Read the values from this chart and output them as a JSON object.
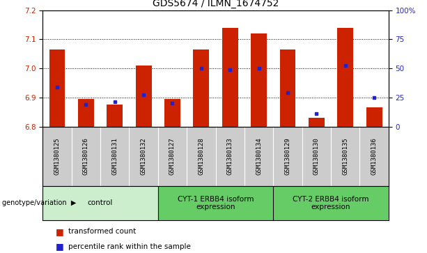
{
  "title": "GDS5674 / ILMN_1674752",
  "samples": [
    "GSM1380125",
    "GSM1380126",
    "GSM1380131",
    "GSM1380132",
    "GSM1380127",
    "GSM1380128",
    "GSM1380133",
    "GSM1380134",
    "GSM1380129",
    "GSM1380130",
    "GSM1380135",
    "GSM1380136"
  ],
  "red_values": [
    7.065,
    6.895,
    6.875,
    7.01,
    6.895,
    7.065,
    7.14,
    7.12,
    7.065,
    6.83,
    7.14,
    6.865
  ],
  "blue_values": [
    6.935,
    6.875,
    6.885,
    6.91,
    6.88,
    7.0,
    6.995,
    7.0,
    6.915,
    6.845,
    7.01,
    6.9
  ],
  "ymin": 6.8,
  "ymax": 7.2,
  "yticks_left": [
    6.8,
    6.9,
    7.0,
    7.1,
    7.2
  ],
  "yticks_right_vals": [
    0,
    25,
    50,
    75,
    100
  ],
  "yticks_right_labels": [
    "0",
    "25",
    "50",
    "75",
    "100%"
  ],
  "bar_color": "#cc2200",
  "blue_color": "#2222cc",
  "baseline": 6.8,
  "bar_width": 0.55,
  "grid_lines": [
    6.9,
    7.0,
    7.1
  ],
  "group_info": [
    {
      "label": "control",
      "start": 0,
      "end": 3,
      "color": "#cceecc"
    },
    {
      "label": "CYT-1 ERBB4 isoform\nexpression",
      "start": 4,
      "end": 7,
      "color": "#66cc66"
    },
    {
      "label": "CYT-2 ERBB4 isoform\nexpression",
      "start": 8,
      "end": 11,
      "color": "#66cc66"
    }
  ],
  "genotype_label": "genotype/variation",
  "legend1": "transformed count",
  "legend2": "percentile rank within the sample",
  "sample_bg": "#cccccc",
  "title_fontsize": 10,
  "tick_fontsize": 7.5,
  "sample_fontsize": 6.5,
  "group_fontsize": 7.5
}
